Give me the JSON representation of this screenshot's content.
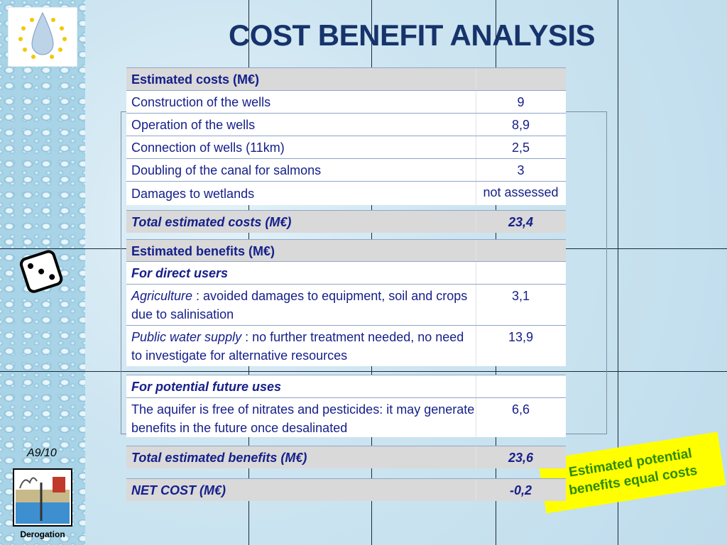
{
  "title": "COST BENEFIT ANALYSIS",
  "slide_number": "A9/10",
  "logo_caption": "Derogation",
  "callout": [
    "Estimated potential",
    "benefits equal costs"
  ],
  "costs": {
    "header": "Estimated costs (M€)",
    "rows": [
      {
        "label": "Construction of the wells",
        "value": "9"
      },
      {
        "label": "Operation of the wells",
        "value": "8,9"
      },
      {
        "label": "Connection of wells (11km)",
        "value": "2,5"
      },
      {
        "label": "Doubling of the canal for salmons",
        "value": "3"
      },
      {
        "label": "Damages to wetlands",
        "value": "not assessed"
      }
    ],
    "total": {
      "label": "Total estimated costs (M€)",
      "value": "23,4"
    }
  },
  "benefits": {
    "header": "Estimated benefits (M€)",
    "groups": [
      {
        "title": "For direct users",
        "rows": [
          {
            "term": "Agriculture",
            "text": " : avoided damages to equipment, soil and crops due to salinisation",
            "value": "3,1"
          },
          {
            "term": "Public water supply",
            "text": " : no further treatment needed, no need to investigate for alternative resources",
            "value": "13,9"
          }
        ]
      },
      {
        "title": "For potential future uses",
        "rows": [
          {
            "text": "The aquifer is free of nitrates and pesticides: it may generate benefits in the future once desalinated",
            "value": "6,6"
          }
        ]
      }
    ],
    "total": {
      "label": "Total estimated benefits (M€)",
      "value": "23,6"
    }
  },
  "net_cost": {
    "label": "NET COST (M€)",
    "value": "-0,2"
  }
}
